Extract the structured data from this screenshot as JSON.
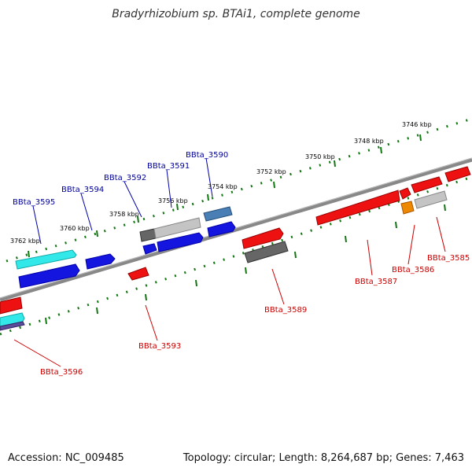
{
  "title": "Bradyrhizobium sp. BTAi1, complete genome",
  "footer": {
    "accession": "Accession: NC_009485",
    "summary": "Topology: circular; Length: 8,264,687 bp; Genes: 7,463"
  },
  "ticks": [
    "3762 kbp",
    "3760 kbp",
    "3758 kbp",
    "3756 kbp",
    "3754 kbp",
    "3752 kbp",
    "3750 kbp",
    "3748 kbp",
    "3746 kbp"
  ],
  "genes_top": [
    "BBta_3595",
    "BBta_3594",
    "BBta_3592",
    "BBta_3591",
    "BBta_3590"
  ],
  "genes_bottom": [
    "BBta_3596",
    "BBta_3593",
    "BBta_3589",
    "BBta_3587",
    "BBta_3586",
    "BBta_3585"
  ],
  "colors": {
    "backbone": "#777777",
    "tick": "#117711",
    "label_top": "#000099",
    "label_bottom": "#cc0000",
    "gene_red": "#ee1111",
    "gene_blue": "#1111dd",
    "gene_cyan": "#22dddd",
    "gene_grey": "#999999",
    "gene_steel": "#4477aa",
    "gene_orange": "#ee8800"
  }
}
